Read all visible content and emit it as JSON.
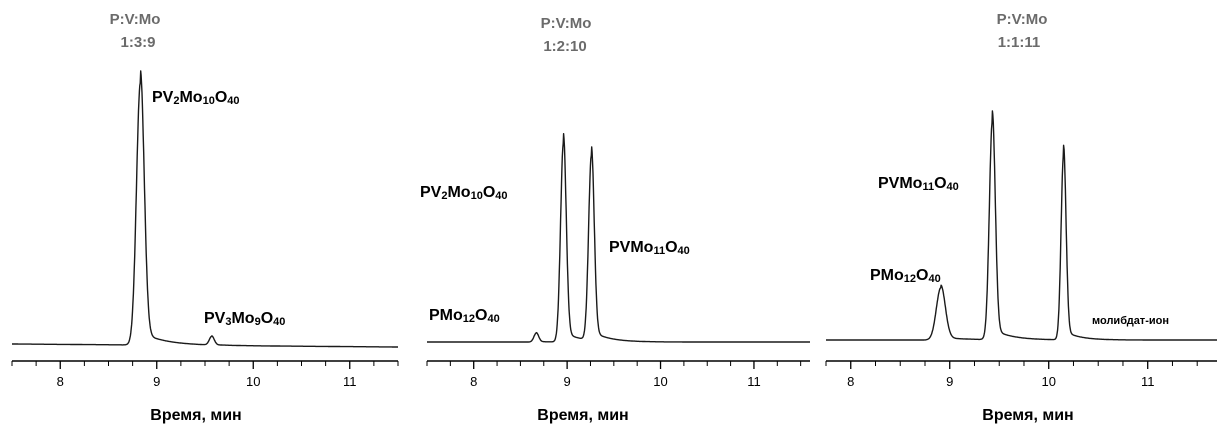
{
  "chart_data": [
    {
      "type": "line",
      "title": "P:V:Mo",
      "subtitle": "1:3:9",
      "xlabel": "Время, мин",
      "ylabel": "",
      "xlim": [
        7.5,
        11.5
      ],
      "xticks": [
        8,
        9,
        10,
        11
      ],
      "grid": false,
      "peaks": [
        {
          "x": 8.83,
          "height": 1.0,
          "width": 0.04,
          "label": "PV₂Mo₁₀O₄₀"
        },
        {
          "x": 9.57,
          "height": 0.033,
          "width": 0.025,
          "label": "PV₃Mo₉O₄₀"
        }
      ],
      "label_parts": [
        [
          {
            "t": "PV"
          },
          {
            "t": "2",
            "s": 1
          },
          {
            "t": "Mo"
          },
          {
            "t": "10",
            "s": 1
          },
          {
            "t": "O"
          },
          {
            "t": "40",
            "s": 1
          }
        ],
        [
          {
            "t": "PV"
          },
          {
            "t": "3",
            "s": 1
          },
          {
            "t": "Mo"
          },
          {
            "t": "9",
            "s": 1
          },
          {
            "t": "O"
          },
          {
            "t": "40",
            "s": 1
          }
        ]
      ]
    },
    {
      "type": "line",
      "title": "P:V:Mo",
      "subtitle": "1:2:10",
      "xlabel": "Время, мин",
      "ylabel": "",
      "xlim": [
        7.5,
        11.6
      ],
      "xticks": [
        8,
        9,
        10,
        11
      ],
      "grid": false,
      "peaks": [
        {
          "x": 8.67,
          "height": 0.045,
          "width": 0.025,
          "label": "PMo₁₂O₄₀"
        },
        {
          "x": 8.96,
          "height": 1.0,
          "width": 0.03,
          "label": "PV₂Mo₁₀O₄₀"
        },
        {
          "x": 9.26,
          "height": 0.93,
          "width": 0.03,
          "label": "PVMo₁₁O₄₀"
        }
      ],
      "label_parts": [
        [
          {
            "t": "PMo"
          },
          {
            "t": "12",
            "s": 1
          },
          {
            "t": "O"
          },
          {
            "t": "40",
            "s": 1
          }
        ],
        [
          {
            "t": "PV"
          },
          {
            "t": "2",
            "s": 1
          },
          {
            "t": "Mo"
          },
          {
            "t": "10",
            "s": 1
          },
          {
            "t": "O"
          },
          {
            "t": "40",
            "s": 1
          }
        ],
        [
          {
            "t": "PVMo"
          },
          {
            "t": "11",
            "s": 1
          },
          {
            "t": "O"
          },
          {
            "t": "40",
            "s": 1
          }
        ]
      ]
    },
    {
      "type": "line",
      "title": "P:V:Mo",
      "subtitle": "1:1:11",
      "xlabel": "Время, мин",
      "ylabel": "",
      "xlim": [
        7.75,
        11.7
      ],
      "xticks": [
        8,
        9,
        10,
        11
      ],
      "grid": false,
      "peaks": [
        {
          "x": 8.91,
          "height": 0.24,
          "width": 0.045,
          "label": "PMo₁₂O₄₀"
        },
        {
          "x": 9.43,
          "height": 1.0,
          "width": 0.03,
          "label": "PVMo₁₁O₄₀"
        },
        {
          "x": 10.15,
          "height": 0.85,
          "width": 0.025,
          "label": "молибдат-ион"
        }
      ],
      "label_parts": [
        [
          {
            "t": "PMo"
          },
          {
            "t": "12",
            "s": 1
          },
          {
            "t": "O"
          },
          {
            "t": "40",
            "s": 1
          }
        ],
        [
          {
            "t": "PVMo"
          },
          {
            "t": "11",
            "s": 1
          },
          {
            "t": "O"
          },
          {
            "t": "40",
            "s": 1
          }
        ],
        [
          {
            "t": "молибдат-ион"
          }
        ]
      ]
    }
  ]
}
